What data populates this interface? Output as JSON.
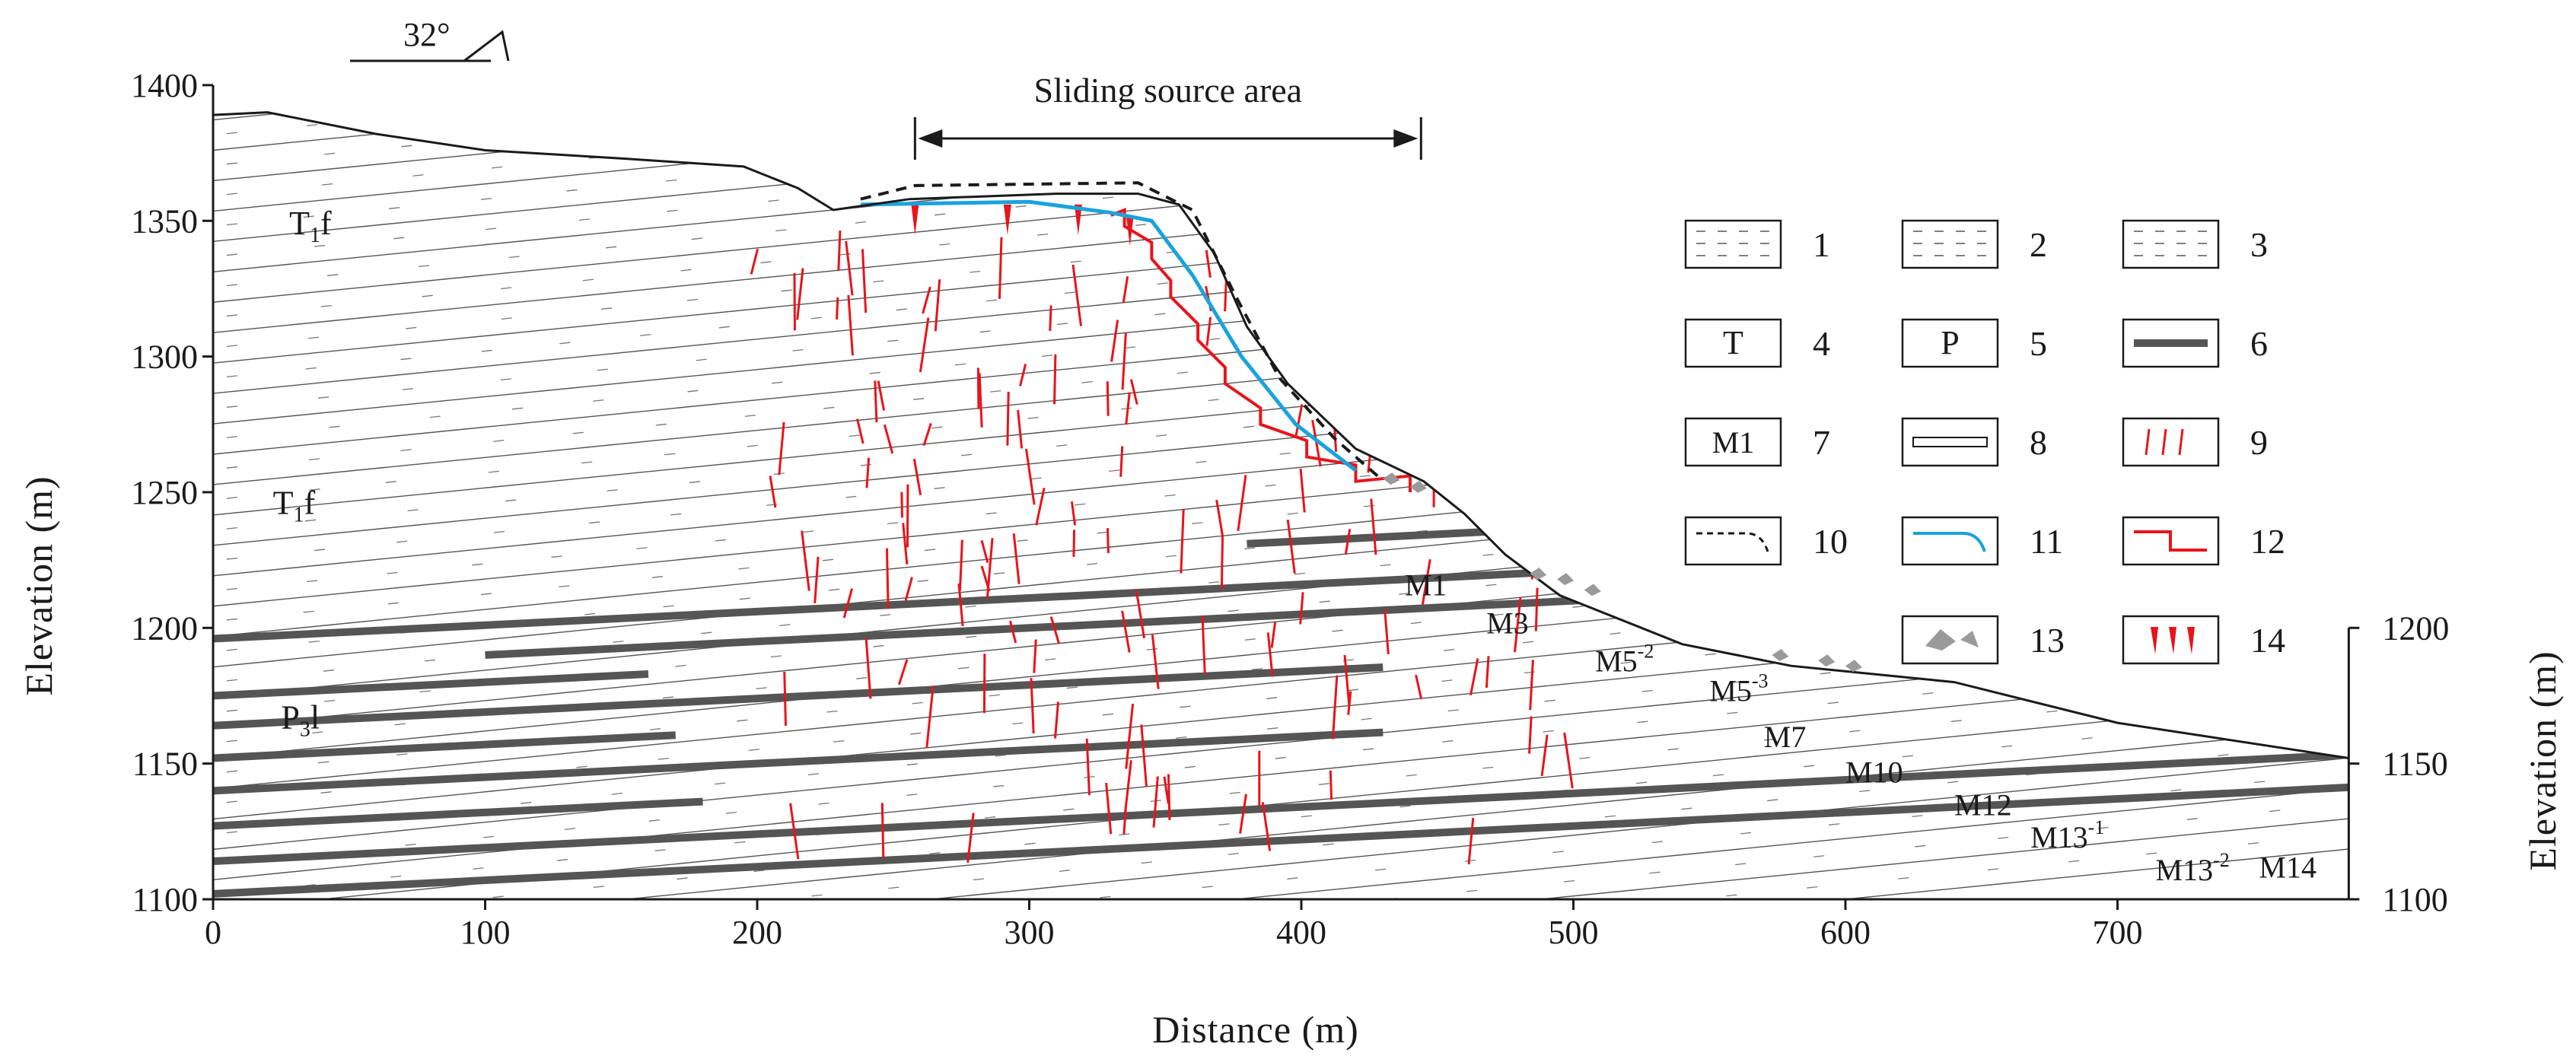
{
  "chart_data": {
    "type": "cross-section",
    "title": "",
    "xlabel": "Distance (m)",
    "ylabel_left": "Elevation (m)",
    "ylabel_right": "Elevation (m)",
    "xlim": [
      0,
      800
    ],
    "ylim": [
      1100,
      1400
    ],
    "x_ticks": [
      "0",
      "100",
      "200",
      "300",
      "400",
      "500",
      "600",
      "700"
    ],
    "y_ticks": [
      "1100",
      "1150",
      "1200",
      "1250",
      "1300",
      "1350",
      "1400"
    ],
    "right_ticks": [
      "1100",
      "1150",
      "1200"
    ],
    "dip_label": "32°",
    "source_area_label": "Sliding source area",
    "source_area_range": [
      258,
      444
    ],
    "formations": [
      {
        "main": "T",
        "sub": "1",
        "tail": "f",
        "x": 28,
        "y": 1345
      },
      {
        "main": "T",
        "sub": "1",
        "tail": "f",
        "x": 22,
        "y": 1242
      },
      {
        "main": "P",
        "sub": "3",
        "tail": "l",
        "x": 25,
        "y": 1163
      }
    ],
    "seams": [
      {
        "label": "M1",
        "lx": 438,
        "ly": 1212
      },
      {
        "label": "M3",
        "lx": 468,
        "ly": 1198
      },
      {
        "label": "M5",
        "sup": "-2",
        "lx": 508,
        "ly": 1184
      },
      {
        "label": "M5",
        "sup": "-3",
        "lx": 550,
        "ly": 1173
      },
      {
        "label": "M7",
        "lx": 570,
        "ly": 1156
      },
      {
        "label": "M10",
        "lx": 600,
        "ly": 1143
      },
      {
        "label": "M12",
        "lx": 640,
        "ly": 1131
      },
      {
        "label": "M13",
        "sup": "-1",
        "lx": 668,
        "ly": 1119
      },
      {
        "label": "M13",
        "sup": "-2",
        "lx": 714,
        "ly": 1107
      },
      {
        "label": "M14",
        "lx": 752,
        "ly": 1108
      }
    ],
    "legend": [
      {
        "num": "1",
        "symbol": "dash-sand"
      },
      {
        "num": "2",
        "symbol": "long-dash"
      },
      {
        "num": "3",
        "symbol": "mixed-dash"
      },
      {
        "num": "4",
        "symbol": "formation-T1f"
      },
      {
        "num": "5",
        "symbol": "formation-P3l"
      },
      {
        "num": "6",
        "symbol": "coal-seam"
      },
      {
        "num": "7",
        "symbol": "seam-label",
        "text": "M1"
      },
      {
        "num": "8",
        "symbol": "thin-bed"
      },
      {
        "num": "9",
        "symbol": "fractures"
      },
      {
        "num": "10",
        "symbol": "dashed-profile"
      },
      {
        "num": "11",
        "symbol": "blue-profile"
      },
      {
        "num": "12",
        "symbol": "step-failure"
      },
      {
        "num": "13",
        "symbol": "debris"
      },
      {
        "num": "14",
        "symbol": "tension-cracks"
      }
    ]
  },
  "colors": {
    "ink": "#1a1a1a",
    "fracture": "#e8141b",
    "profile_blue": "#1aa3dc",
    "coal": "#555555",
    "debris": "#9a9a9a"
  }
}
